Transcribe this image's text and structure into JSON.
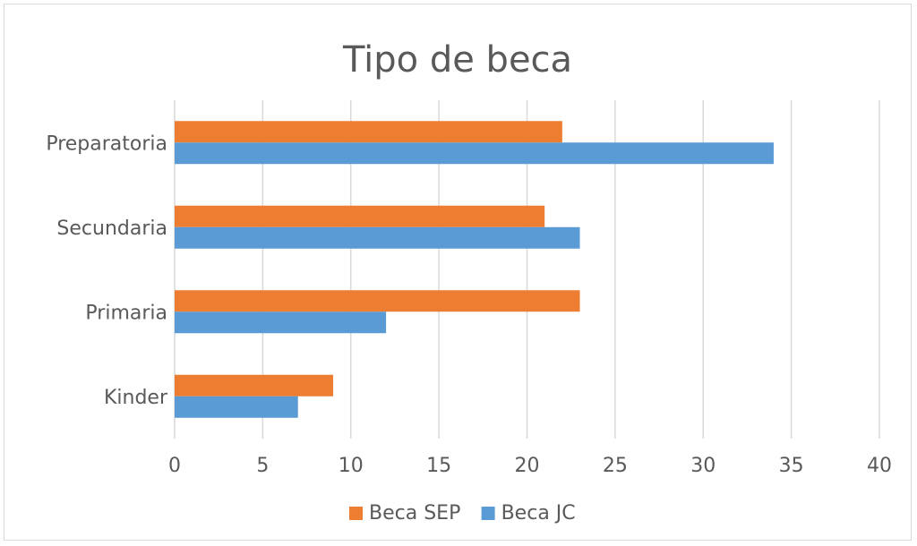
{
  "chart_data": {
    "type": "bar",
    "orientation": "horizontal",
    "title": "Tipo de beca",
    "categories": [
      "Kinder",
      "Primaria",
      "Secundaria",
      "Preparatoria"
    ],
    "series": [
      {
        "name": "Beca SEP",
        "values": [
          9,
          23,
          21,
          22
        ],
        "color": "#ed7d31"
      },
      {
        "name": "Beca JC",
        "values": [
          7,
          12,
          23,
          34
        ],
        "color": "#5b9bd5"
      }
    ],
    "xlim": [
      0,
      40
    ],
    "xticks": [
      "0",
      "5",
      "10",
      "15",
      "20",
      "25",
      "30",
      "35",
      "40"
    ],
    "grid": true,
    "gridColor": "#d9d9d9",
    "legend": "bottom"
  }
}
